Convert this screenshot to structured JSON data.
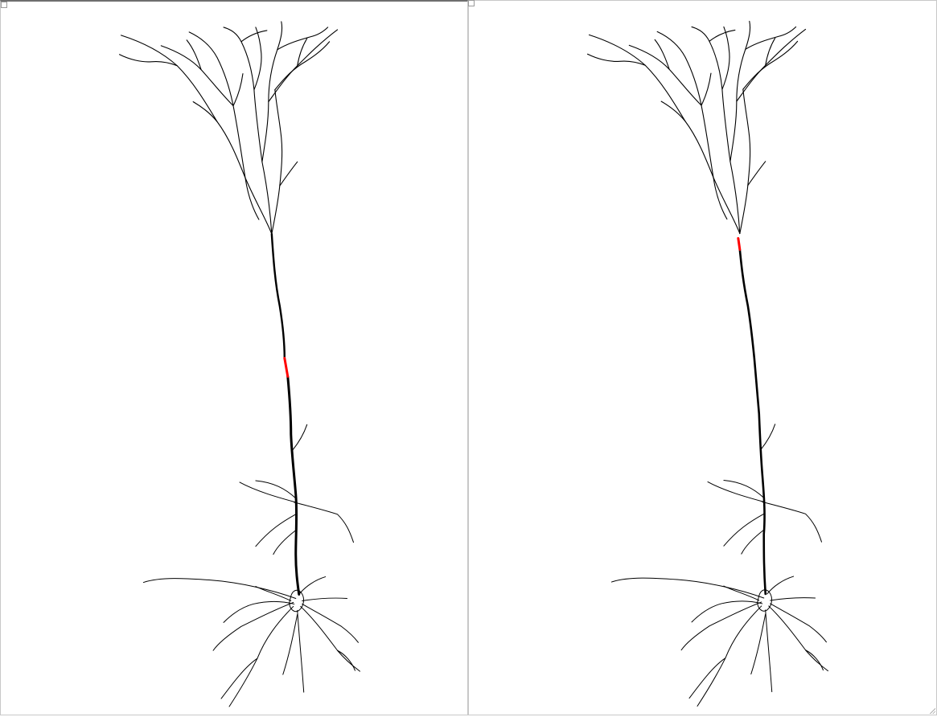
{
  "figure": {
    "panels": [
      {
        "id": "left",
        "highlight_segment": "apical-trunk-mid"
      },
      {
        "id": "right",
        "highlight_segment": "apical-trunk-upper"
      }
    ],
    "colors": {
      "neuron": "#000000",
      "highlight": "#ff0000",
      "background": "#ffffff",
      "frame": "#c8c8c8"
    }
  }
}
